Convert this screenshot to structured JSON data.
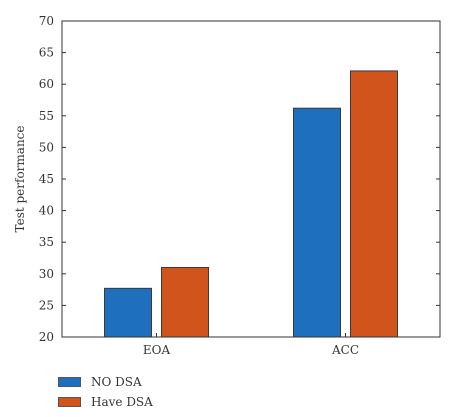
{
  "chart_data": {
    "type": "bar",
    "categories": [
      "EOA",
      "ACC"
    ],
    "series": [
      {
        "name": "NO DSA",
        "values": [
          27.7,
          56.2
        ],
        "color": "#1f6fbf"
      },
      {
        "name": "Have DSA",
        "values": [
          31.0,
          62.1
        ],
        "color": "#d2541d"
      }
    ],
    "ylabel": "Test performance",
    "xlabel": "",
    "ylim": [
      20,
      70
    ],
    "yticks": [
      20,
      25,
      30,
      35,
      40,
      45,
      50,
      55,
      60,
      65,
      70
    ],
    "grid": false,
    "legend_position": "bottom-left"
  }
}
